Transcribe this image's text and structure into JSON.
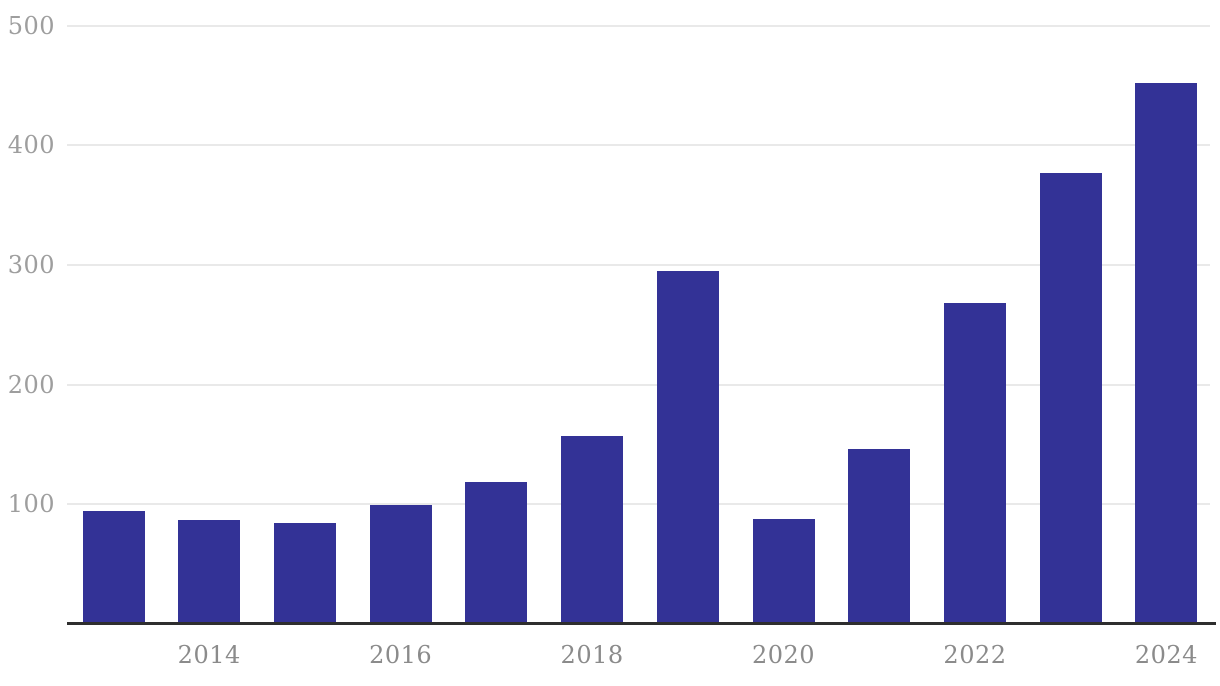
{
  "chart_data": {
    "type": "bar",
    "title": "",
    "xlabel": "",
    "ylabel": "",
    "categories": [
      "2013",
      "2014",
      "2015",
      "2016",
      "2017",
      "2018",
      "2019",
      "2020",
      "2021",
      "2022",
      "2023",
      "2024"
    ],
    "values": [
      94,
      87,
      84,
      99,
      119,
      157,
      295,
      88,
      146,
      268,
      377,
      452
    ],
    "x_tick_labels": [
      "2014",
      "2016",
      "2018",
      "2020",
      "2022",
      "2024"
    ],
    "x_tick_category_indices": [
      1,
      3,
      5,
      7,
      9,
      11
    ],
    "y_ticks": [
      100,
      200,
      300,
      400,
      500
    ],
    "ylim": [
      0,
      500
    ],
    "grid": "horizontal",
    "legend_position": "none",
    "colors": {
      "bar": "#333296",
      "gridline": "#e9e9e9",
      "axis_line": "#2e2e2e",
      "y_tick_label": "#9e9e9e",
      "x_tick_label": "#8b8b8b",
      "background": "#ffffff"
    }
  }
}
